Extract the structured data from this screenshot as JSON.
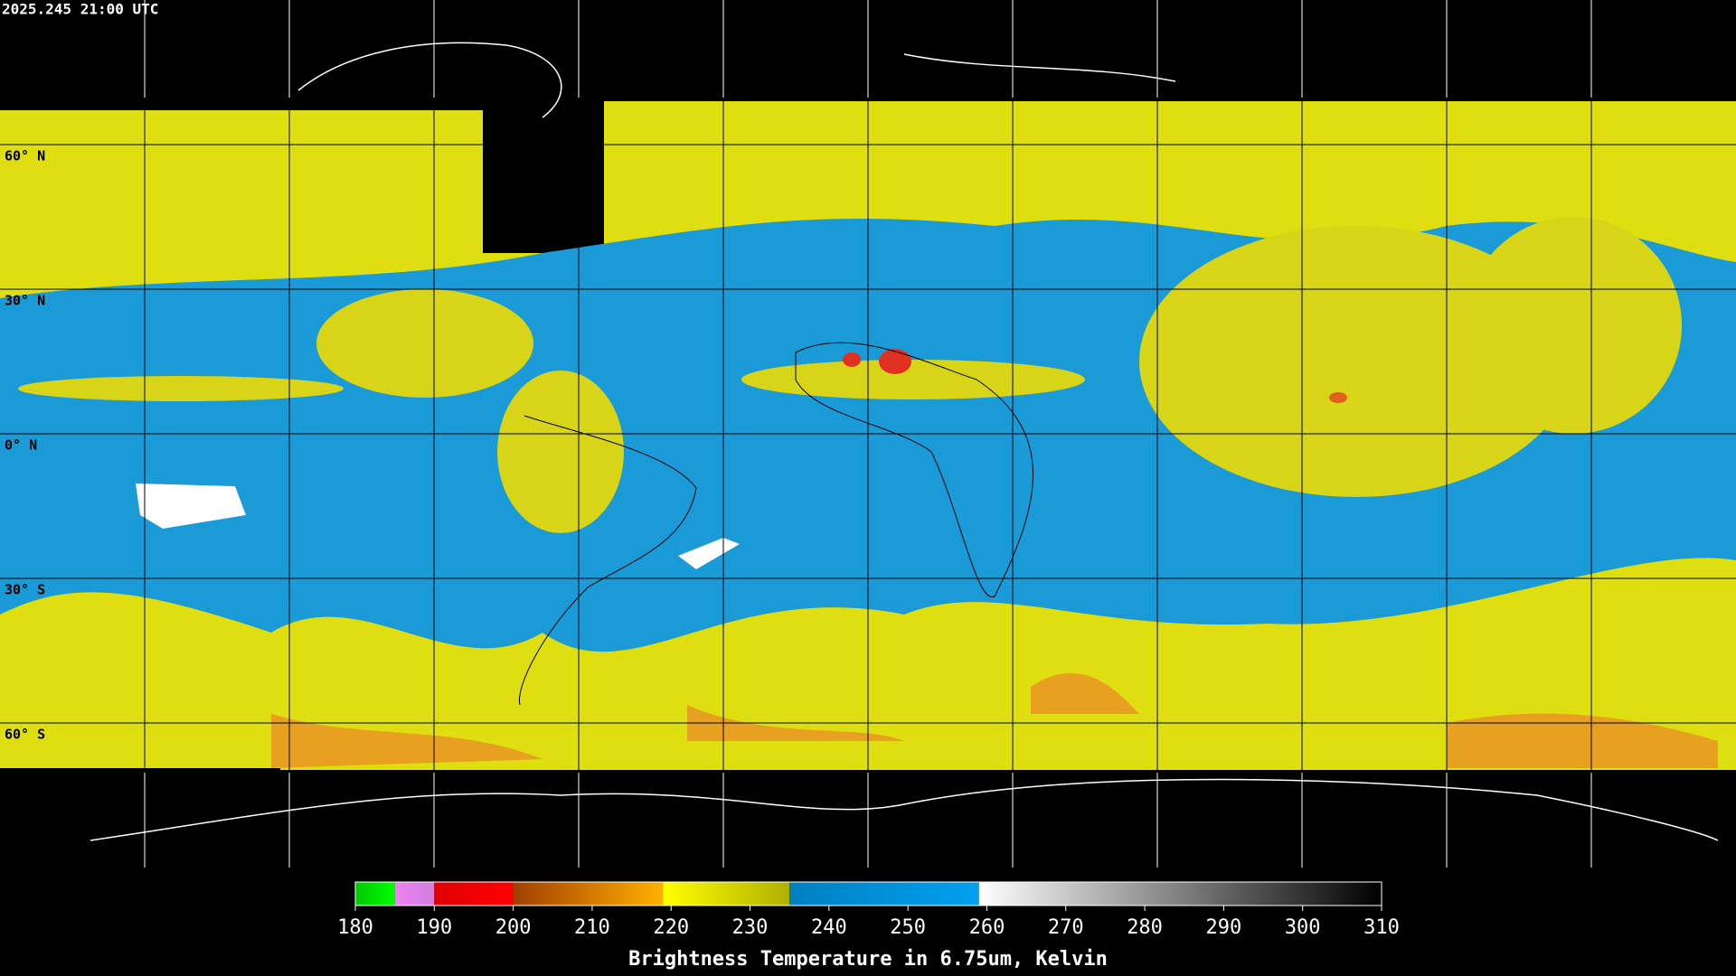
{
  "header": {
    "timestamp": "2025.245 21:00 UTC"
  },
  "map": {
    "lat_labels": [
      "60° N",
      "30° N",
      "0° N",
      "30° S",
      "60° S"
    ]
  },
  "colorbar": {
    "title": "Brightness Temperature in 6.75um, Kelvin",
    "lim": [
      180,
      310
    ],
    "ticks": [
      180,
      190,
      200,
      210,
      220,
      230,
      240,
      250,
      260,
      270,
      280,
      290,
      300,
      310
    ],
    "segments": [
      {
        "from": 180,
        "to": 185,
        "colors": [
          "#00c800",
          "#00ff00"
        ]
      },
      {
        "from": 185,
        "to": 190,
        "colors": [
          "#ee82ee",
          "#d080e0"
        ]
      },
      {
        "from": 190,
        "to": 200,
        "colors": [
          "#e00000",
          "#ff0000"
        ]
      },
      {
        "from": 200,
        "to": 219,
        "colors": [
          "#a04000",
          "#ffb000"
        ]
      },
      {
        "from": 219,
        "to": 235,
        "colors": [
          "#ffff00",
          "#b0b000"
        ]
      },
      {
        "from": 235,
        "to": 259,
        "colors": [
          "#0080c0",
          "#00a0f0"
        ]
      },
      {
        "from": 259,
        "to": 310,
        "colors": [
          "#ffffff",
          "#000000"
        ]
      }
    ]
  }
}
